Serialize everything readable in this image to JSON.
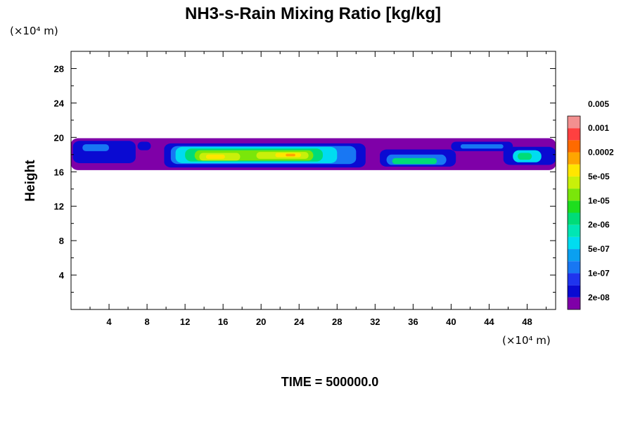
{
  "chart_data": {
    "type": "heatmap",
    "title": "NH3-s-Rain Mixing Ratio [kg/kg]",
    "xunit": "(×10⁴ m)",
    "yunit": "(×10⁴ m)",
    "ylabel": "Height",
    "xlabel": "",
    "xlim": [
      0,
      51
    ],
    "ylim": [
      0,
      30
    ],
    "xticks": [
      "4",
      "8",
      "12",
      "16",
      "20",
      "24",
      "28",
      "32",
      "36",
      "40",
      "44",
      "48"
    ],
    "yticks": [
      "4",
      "8",
      "12",
      "16",
      "20",
      "24",
      "28"
    ],
    "colorbar": {
      "colors": [
        "#7f00a8",
        "#0a0ad2",
        "#1f34ee",
        "#1877f3",
        "#0aa0f0",
        "#00dcf0",
        "#00e6b4",
        "#00dc78",
        "#1ede1e",
        "#7ae60a",
        "#c8f00a",
        "#ffe600",
        "#ffa500",
        "#ff6a00",
        "#ff4040",
        "#f39090"
      ],
      "labels": [
        "2e-08",
        "1e-07",
        "5e-07",
        "2e-06",
        "1e-05",
        "5e-05",
        "0.0002",
        "0.001",
        "0.005"
      ]
    },
    "regions": [
      {
        "level": 0,
        "x0": 0.0,
        "x1": 51.0,
        "y0": 16.2,
        "y1": 19.9
      },
      {
        "level": 1,
        "x0": 0.2,
        "x1": 6.8,
        "y0": 17.0,
        "y1": 19.6
      },
      {
        "level": 3,
        "x0": 1.2,
        "x1": 4.0,
        "y0": 18.4,
        "y1": 19.2
      },
      {
        "level": 1,
        "x0": 7.0,
        "x1": 8.4,
        "y0": 18.5,
        "y1": 19.5
      },
      {
        "level": 1,
        "x0": 9.8,
        "x1": 31.0,
        "y0": 16.5,
        "y1": 19.3
      },
      {
        "level": 3,
        "x0": 10.5,
        "x1": 30.0,
        "y0": 16.9,
        "y1": 19.0
      },
      {
        "level": 5,
        "x0": 11.0,
        "x1": 28.0,
        "y0": 17.0,
        "y1": 18.9
      },
      {
        "level": 7,
        "x0": 12.0,
        "x1": 26.5,
        "y0": 17.2,
        "y1": 18.7
      },
      {
        "level": 9,
        "x0": 13.0,
        "x1": 25.5,
        "y0": 17.3,
        "y1": 18.5
      },
      {
        "level": 10,
        "x0": 13.5,
        "x1": 17.8,
        "y0": 17.3,
        "y1": 18.2
      },
      {
        "level": 10,
        "x0": 19.5,
        "x1": 25.0,
        "y0": 17.5,
        "y1": 18.3
      },
      {
        "level": 11,
        "x0": 14.2,
        "x1": 16.2,
        "y0": 17.5,
        "y1": 18.0
      },
      {
        "level": 11,
        "x0": 21.5,
        "x1": 24.2,
        "y0": 17.7,
        "y1": 18.2
      },
      {
        "level": 12,
        "x0": 22.6,
        "x1": 23.6,
        "y0": 17.8,
        "y1": 18.1
      },
      {
        "level": 1,
        "x0": 32.5,
        "x1": 40.5,
        "y0": 16.6,
        "y1": 18.6
      },
      {
        "level": 3,
        "x0": 33.2,
        "x1": 39.5,
        "y0": 16.8,
        "y1": 18.0
      },
      {
        "level": 7,
        "x0": 33.8,
        "x1": 38.5,
        "y0": 16.9,
        "y1": 17.6
      },
      {
        "level": 1,
        "x0": 40.0,
        "x1": 46.5,
        "y0": 18.4,
        "y1": 19.5
      },
      {
        "level": 3,
        "x0": 41.0,
        "x1": 45.5,
        "y0": 18.7,
        "y1": 19.2
      },
      {
        "level": 1,
        "x0": 45.5,
        "x1": 51.0,
        "y0": 16.8,
        "y1": 18.9
      },
      {
        "level": 5,
        "x0": 46.5,
        "x1": 49.5,
        "y0": 17.1,
        "y1": 18.5
      },
      {
        "level": 7,
        "x0": 47.0,
        "x1": 48.5,
        "y0": 17.4,
        "y1": 18.2
      }
    ]
  },
  "footer": {
    "time": "TIME = 500000.0"
  }
}
